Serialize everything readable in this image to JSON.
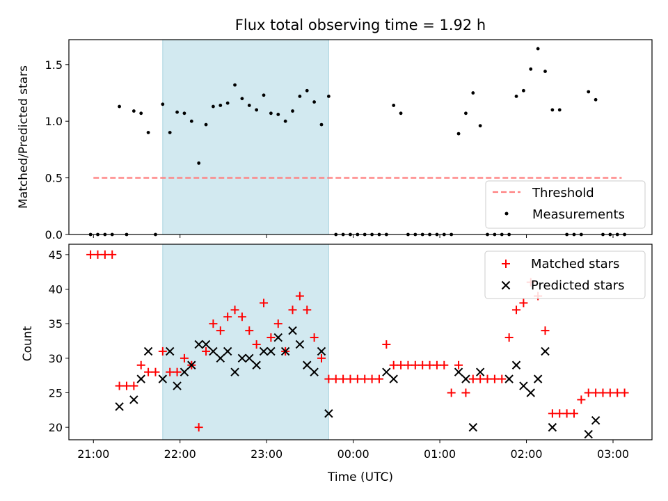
{
  "chart_data": [
    {
      "type": "scatter",
      "title": "Flux total observing time = 1.92 h",
      "xlabel": "",
      "ylabel": "Matched/Predicted stars",
      "ylim": [
        0,
        1.72
      ],
      "xlim": [
        "20:43",
        "03:27"
      ],
      "yticks": [
        "0.0",
        "0.5",
        "1.0",
        "1.5"
      ],
      "highlight_span": [
        "21:48",
        "23:43"
      ],
      "highlight_color": "#d2e9f0",
      "threshold": {
        "name": "Threshold",
        "value": 0.5,
        "from": "21:00",
        "to": "03:06",
        "color": "#ff7f7f"
      },
      "legend": {
        "position": "lower-right",
        "entries": [
          "Threshold",
          "Measurements"
        ]
      },
      "series": [
        {
          "name": "Measurements",
          "color": "#000000",
          "points": [
            [
              "20:58",
              0
            ],
            [
              "21:03",
              0
            ],
            [
              "21:08",
              0
            ],
            [
              "21:13",
              0
            ],
            [
              "21:18",
              1.13
            ],
            [
              "21:23",
              0
            ],
            [
              "21:28",
              1.09
            ],
            [
              "21:33",
              1.07
            ],
            [
              "21:38",
              0.9
            ],
            [
              "21:43",
              0
            ],
            [
              "21:48",
              1.15
            ],
            [
              "21:53",
              0.9
            ],
            [
              "21:58",
              1.08
            ],
            [
              "22:03",
              1.07
            ],
            [
              "22:08",
              1.0
            ],
            [
              "22:13",
              0.63
            ],
            [
              "22:18",
              0.97
            ],
            [
              "22:23",
              1.13
            ],
            [
              "22:28",
              1.14
            ],
            [
              "22:33",
              1.16
            ],
            [
              "22:38",
              1.32
            ],
            [
              "22:43",
              1.2
            ],
            [
              "22:48",
              1.14
            ],
            [
              "22:53",
              1.1
            ],
            [
              "22:58",
              1.23
            ],
            [
              "23:03",
              1.07
            ],
            [
              "23:08",
              1.06
            ],
            [
              "23:13",
              1.0
            ],
            [
              "23:18",
              1.09
            ],
            [
              "23:23",
              1.22
            ],
            [
              "23:28",
              1.27
            ],
            [
              "23:33",
              1.17
            ],
            [
              "23:38",
              0.97
            ],
            [
              "23:43",
              1.22
            ],
            [
              "23:48",
              0
            ],
            [
              "23:53",
              0
            ],
            [
              "23:58",
              0
            ],
            [
              "00:03",
              0
            ],
            [
              "00:08",
              0
            ],
            [
              "00:13",
              0
            ],
            [
              "00:18",
              0
            ],
            [
              "00:23",
              0
            ],
            [
              "00:28",
              1.14
            ],
            [
              "00:33",
              1.07
            ],
            [
              "00:38",
              0
            ],
            [
              "00:43",
              0
            ],
            [
              "00:48",
              0
            ],
            [
              "00:53",
              0
            ],
            [
              "00:58",
              0
            ],
            [
              "01:03",
              0
            ],
            [
              "01:08",
              0
            ],
            [
              "01:13",
              0.89
            ],
            [
              "01:18",
              1.07
            ],
            [
              "01:23",
              1.25
            ],
            [
              "01:28",
              0.96
            ],
            [
              "01:33",
              0
            ],
            [
              "01:38",
              0
            ],
            [
              "01:43",
              0
            ],
            [
              "01:48",
              0
            ],
            [
              "01:53",
              1.22
            ],
            [
              "01:58",
              1.27
            ],
            [
              "02:03",
              1.46
            ],
            [
              "02:08",
              1.64
            ],
            [
              "02:13",
              1.44
            ],
            [
              "02:18",
              1.1
            ],
            [
              "02:23",
              1.1
            ],
            [
              "02:28",
              0
            ],
            [
              "02:33",
              0
            ],
            [
              "02:38",
              0
            ],
            [
              "02:43",
              1.26
            ],
            [
              "02:48",
              1.19
            ],
            [
              "02:53",
              0
            ],
            [
              "02:58",
              0
            ],
            [
              "03:03",
              0
            ],
            [
              "03:08",
              0
            ]
          ]
        }
      ]
    },
    {
      "type": "scatter",
      "title": "",
      "xlabel": "Time (UTC)",
      "ylabel": "Count",
      "ylim": [
        18.2,
        46.5
      ],
      "xlim": [
        "20:43",
        "03:27"
      ],
      "yticks": [
        "20",
        "25",
        "30",
        "35",
        "40",
        "45"
      ],
      "xticks": [
        "21:00",
        "22:00",
        "23:00",
        "00:00",
        "01:00",
        "02:00",
        "03:00"
      ],
      "highlight_span": [
        "21:48",
        "23:43"
      ],
      "legend": {
        "position": "upper-right",
        "entries": [
          "Matched stars",
          "Predicted stars"
        ]
      },
      "series": [
        {
          "name": "Matched stars",
          "marker": "plus",
          "color": "#ff0000",
          "points": [
            [
              "20:58",
              45
            ],
            [
              "21:03",
              45
            ],
            [
              "21:08",
              45
            ],
            [
              "21:13",
              45
            ],
            [
              "21:18",
              26
            ],
            [
              "21:23",
              26
            ],
            [
              "21:28",
              26
            ],
            [
              "21:33",
              29
            ],
            [
              "21:38",
              28
            ],
            [
              "21:43",
              28
            ],
            [
              "21:48",
              31
            ],
            [
              "21:53",
              28
            ],
            [
              "21:58",
              28
            ],
            [
              "22:03",
              30
            ],
            [
              "22:08",
              29
            ],
            [
              "22:13",
              20
            ],
            [
              "22:18",
              31
            ],
            [
              "22:23",
              35
            ],
            [
              "22:28",
              34
            ],
            [
              "22:33",
              36
            ],
            [
              "22:38",
              37
            ],
            [
              "22:43",
              36
            ],
            [
              "22:48",
              34
            ],
            [
              "22:53",
              32
            ],
            [
              "22:58",
              38
            ],
            [
              "23:03",
              33
            ],
            [
              "23:08",
              35
            ],
            [
              "23:13",
              31
            ],
            [
              "23:18",
              37
            ],
            [
              "23:23",
              39
            ],
            [
              "23:28",
              37
            ],
            [
              "23:33",
              33
            ],
            [
              "23:38",
              30
            ],
            [
              "23:43",
              27
            ],
            [
              "23:48",
              27
            ],
            [
              "23:53",
              27
            ],
            [
              "23:58",
              27
            ],
            [
              "00:03",
              27
            ],
            [
              "00:08",
              27
            ],
            [
              "00:13",
              27
            ],
            [
              "00:18",
              27
            ],
            [
              "00:23",
              32
            ],
            [
              "00:28",
              29
            ],
            [
              "00:33",
              29
            ],
            [
              "00:38",
              29
            ],
            [
              "00:43",
              29
            ],
            [
              "00:48",
              29
            ],
            [
              "00:53",
              29
            ],
            [
              "00:58",
              29
            ],
            [
              "01:03",
              29
            ],
            [
              "01:08",
              25
            ],
            [
              "01:13",
              29
            ],
            [
              "01:18",
              25
            ],
            [
              "01:23",
              27
            ],
            [
              "01:28",
              27
            ],
            [
              "01:33",
              27
            ],
            [
              "01:38",
              27
            ],
            [
              "01:43",
              27
            ],
            [
              "01:48",
              33
            ],
            [
              "01:53",
              37
            ],
            [
              "01:58",
              38
            ],
            [
              "02:03",
              41
            ],
            [
              "02:08",
              39
            ],
            [
              "02:13",
              34
            ],
            [
              "02:18",
              22
            ],
            [
              "02:23",
              22
            ],
            [
              "02:28",
              22
            ],
            [
              "02:33",
              22
            ],
            [
              "02:38",
              24
            ],
            [
              "02:43",
              25
            ],
            [
              "02:48",
              25
            ],
            [
              "02:53",
              25
            ],
            [
              "02:58",
              25
            ],
            [
              "03:03",
              25
            ],
            [
              "03:08",
              25
            ]
          ]
        },
        {
          "name": "Predicted stars",
          "marker": "x",
          "color": "#000000",
          "points": [
            [
              "21:18",
              23
            ],
            [
              "21:28",
              24
            ],
            [
              "21:33",
              27
            ],
            [
              "21:38",
              31
            ],
            [
              "21:48",
              27
            ],
            [
              "21:53",
              31
            ],
            [
              "21:58",
              26
            ],
            [
              "22:03",
              28
            ],
            [
              "22:08",
              29
            ],
            [
              "22:13",
              32
            ],
            [
              "22:18",
              32
            ],
            [
              "22:23",
              31
            ],
            [
              "22:28",
              30
            ],
            [
              "22:33",
              31
            ],
            [
              "22:38",
              28
            ],
            [
              "22:43",
              30
            ],
            [
              "22:48",
              30
            ],
            [
              "22:53",
              29
            ],
            [
              "22:58",
              31
            ],
            [
              "23:03",
              31
            ],
            [
              "23:08",
              33
            ],
            [
              "23:13",
              31
            ],
            [
              "23:18",
              34
            ],
            [
              "23:23",
              32
            ],
            [
              "23:28",
              29
            ],
            [
              "23:33",
              28
            ],
            [
              "23:38",
              31
            ],
            [
              "23:43",
              22
            ],
            [
              "00:23",
              28
            ],
            [
              "00:28",
              27
            ],
            [
              "01:13",
              28
            ],
            [
              "01:18",
              27
            ],
            [
              "01:23",
              20
            ],
            [
              "01:28",
              28
            ],
            [
              "01:48",
              27
            ],
            [
              "01:53",
              29
            ],
            [
              "01:58",
              26
            ],
            [
              "02:03",
              25
            ],
            [
              "02:08",
              27
            ],
            [
              "02:13",
              31
            ],
            [
              "02:18",
              20
            ],
            [
              "02:43",
              19
            ],
            [
              "02:48",
              21
            ]
          ]
        }
      ]
    }
  ]
}
